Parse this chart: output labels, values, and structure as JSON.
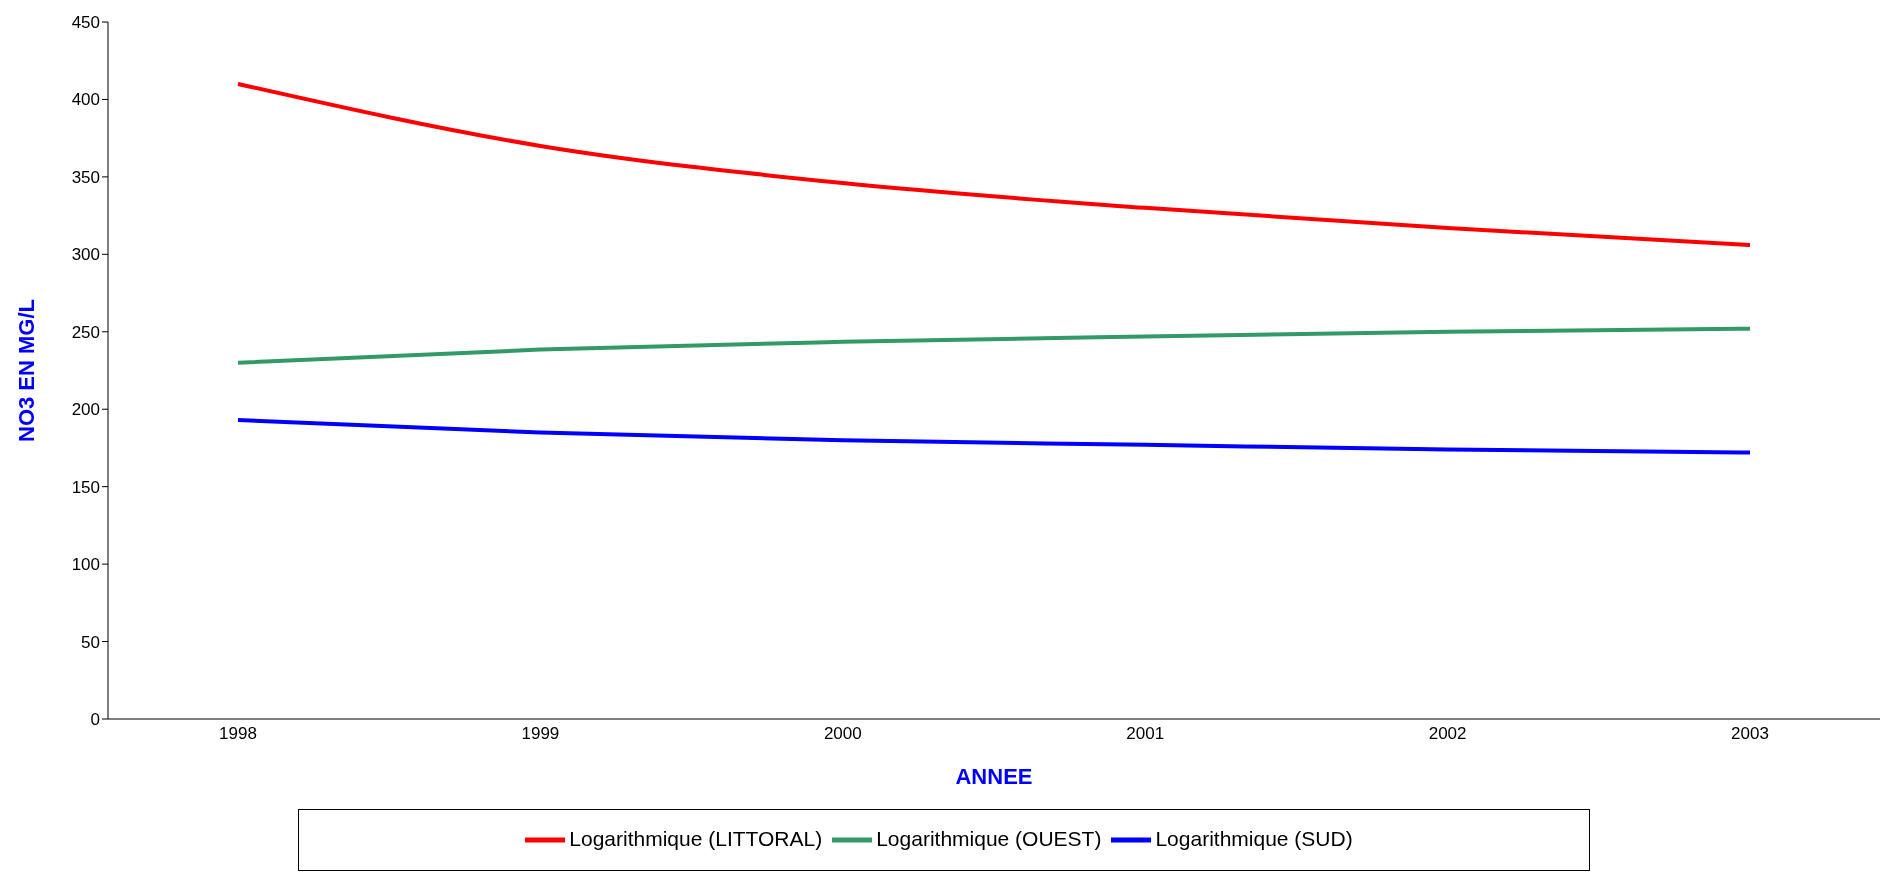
{
  "chart_data": {
    "type": "line",
    "xlabel": "ANNEE",
    "ylabel": "NO3 EN MG/L",
    "categories": [
      "1998",
      "1999",
      "2000",
      "2001",
      "2002",
      "2003"
    ],
    "series": [
      {
        "name": "Logarithmique (LITTORAL)",
        "color": "#ff0000",
        "values": [
          410,
          370,
          346,
          330,
          317,
          306
        ]
      },
      {
        "name": "Logarithmique (OUEST)",
        "color": "#339966",
        "values": [
          230,
          238.5,
          243.5,
          247,
          250,
          252
        ]
      },
      {
        "name": "Logarithmique (SUD)",
        "color": "#0000ff",
        "values": [
          193,
          185,
          180,
          177,
          174,
          172
        ]
      }
    ],
    "ylim": [
      0,
      450
    ],
    "yticks": [
      0,
      50,
      100,
      150,
      200,
      250,
      300,
      350,
      400,
      450
    ],
    "legend": "bottom"
  }
}
